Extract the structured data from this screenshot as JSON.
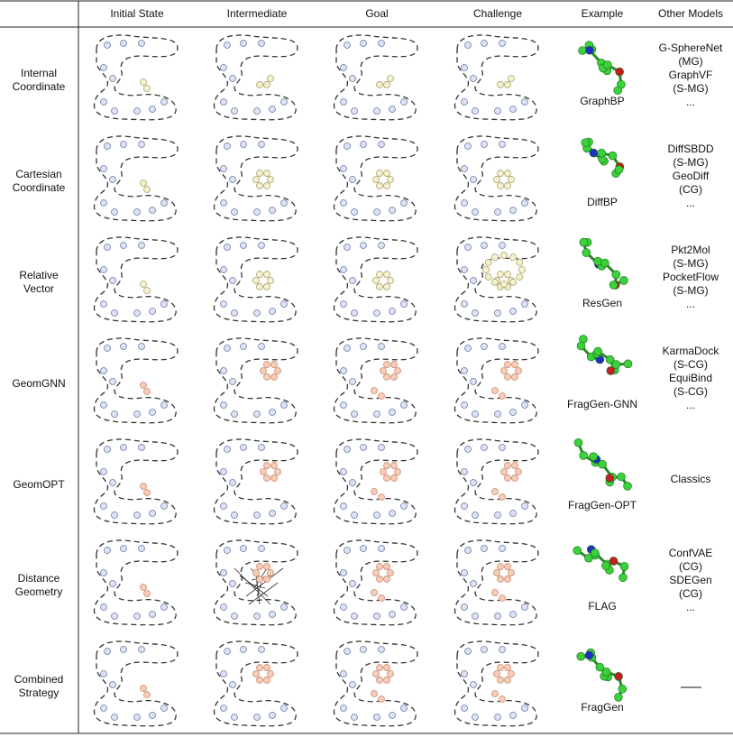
{
  "header": {
    "columns": [
      "Initial State",
      "Intermediate",
      "Goal",
      "Challenge",
      "Example",
      "Other Models"
    ]
  },
  "rows": [
    {
      "label": "Internal Coordinate",
      "example": "GraphBP",
      "other_models": [
        "G-SphereNet",
        "(MG)",
        "GraphVF",
        "(S-MG)",
        "..."
      ]
    },
    {
      "label": "Cartesian Coordinate",
      "example": "DiffBP",
      "other_models": [
        "DiffSBDD",
        "(S-MG)",
        "GeoDiff",
        "(CG)",
        "..."
      ]
    },
    {
      "label": "Relative Vector",
      "example": "ResGen",
      "other_models": [
        "Pkt2Mol",
        "(S-MG)",
        "PocketFlow",
        "(S-MG)",
        "..."
      ]
    },
    {
      "label": "GeomGNN",
      "example": "FragGen-GNN",
      "other_models": [
        "KarmaDock",
        "(S-CG)",
        "EquiBind",
        "(S-CG)",
        "..."
      ]
    },
    {
      "label": "GeomOPT",
      "example": "FragGen-OPT",
      "other_models": [
        "Classics"
      ]
    },
    {
      "label": "Distance Geometry",
      "example": "FLAG",
      "other_models": [
        "ConfVAE",
        "(CG)",
        "SDEGen",
        "(CG)",
        "..."
      ]
    },
    {
      "label": "Combined Strategy",
      "example": "FragGen"
    }
  ]
}
